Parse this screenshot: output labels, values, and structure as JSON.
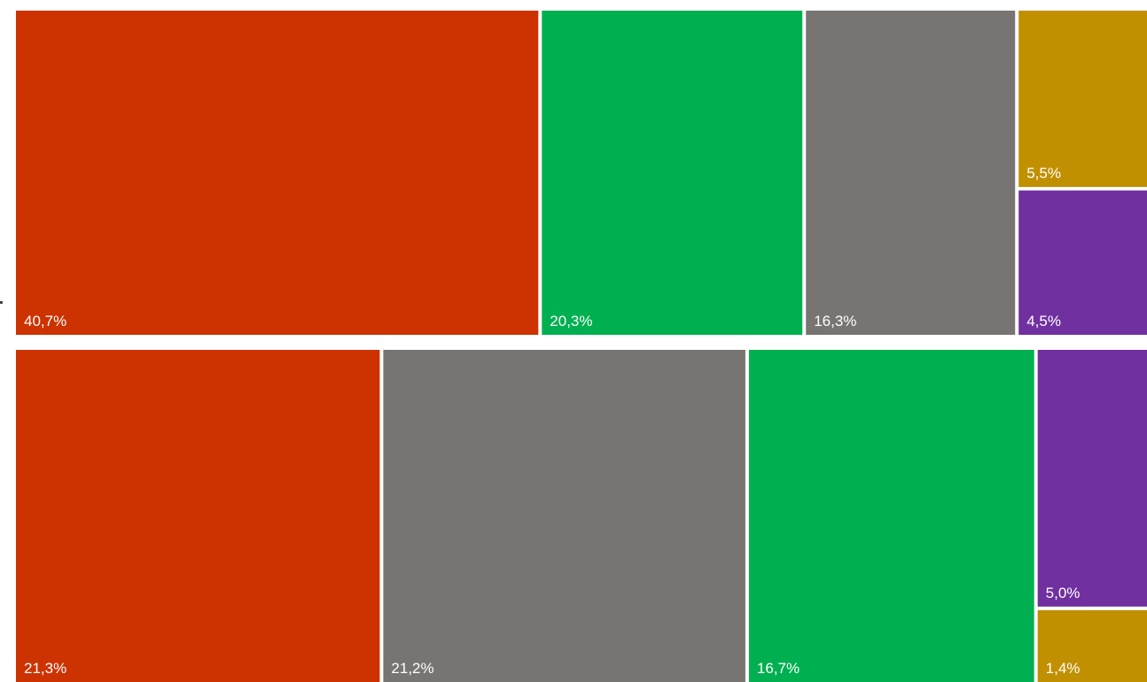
{
  "chart_data": {
    "type": "treemap",
    "title": "",
    "groups": [
      {
        "tiles": [
          {
            "label": "40,7%",
            "value": 40.7,
            "color": "#CC3300"
          },
          {
            "label": "20,3%",
            "value": 20.3,
            "color": "#00B050"
          },
          {
            "label": "16,3%",
            "value": 16.3,
            "color": "#787472"
          },
          {
            "label": "5,5%",
            "value": 5.5,
            "color": "#C09000"
          },
          {
            "label": "4,5%",
            "value": 4.5,
            "color": "#7030A0"
          }
        ]
      },
      {
        "tiles": [
          {
            "label": "21,3%",
            "value": 21.3,
            "color": "#CC3300"
          },
          {
            "label": "21,2%",
            "value": 21.2,
            "color": "#787472"
          },
          {
            "label": "16,7%",
            "value": 16.7,
            "color": "#00B050"
          },
          {
            "label": "5,0%",
            "value": 5.0,
            "color": "#7030A0"
          },
          {
            "label": "1,4%",
            "value": 1.4,
            "color": "#C09000"
          }
        ]
      }
    ]
  }
}
